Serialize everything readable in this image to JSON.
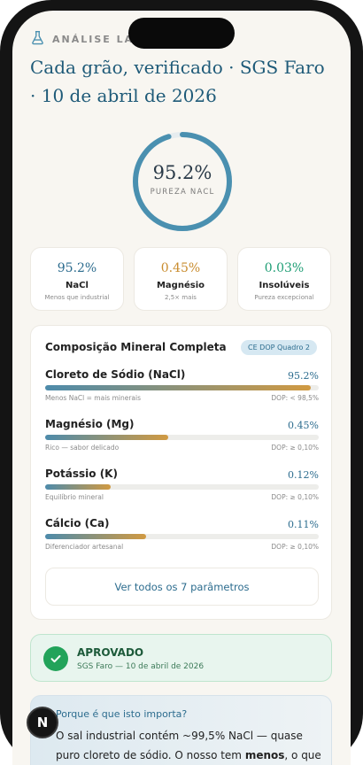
{
  "header": {
    "lab_label": "ANÁLISE LAB",
    "title": "Cada grão, verificado · SGS Faro · 10 de abril de 2026"
  },
  "purity": {
    "value_text": "95.2%",
    "label": "PUREZA NACL",
    "fraction": 0.952,
    "ring_color": "#4a90b0"
  },
  "stats": [
    {
      "value": "95.2%",
      "name": "NaCl",
      "sub": "Menos que industrial",
      "color": "#2c6c8e"
    },
    {
      "value": "0.45%",
      "name": "Magnésio",
      "sub": "2,5× mais",
      "color": "#c98c2e"
    },
    {
      "value": "0.03%",
      "name": "Insolúveis",
      "sub": "Pureza excepcional",
      "color": "#1f9e75"
    }
  ],
  "composition": {
    "title": "Composição Mineral Completa",
    "badge": "CE DOP Quadro 2",
    "minerals": [
      {
        "name": "Cloreto de Sódio (NaCl)",
        "value": "95.2%",
        "fill": 0.97,
        "note": "Menos NaCl = mais minerais",
        "dop": "DOP: < 98,5%"
      },
      {
        "name": "Magnésio (Mg)",
        "value": "0.45%",
        "fill": 0.45,
        "note": "Rico — sabor delicado",
        "dop": "DOP: ≥ 0,10%"
      },
      {
        "name": "Potássio (K)",
        "value": "0.12%",
        "fill": 0.24,
        "note": "Equilíbrio mineral",
        "dop": "DOP: ≥ 0,10%"
      },
      {
        "name": "Cálcio (Ca)",
        "value": "0.11%",
        "fill": 0.37,
        "note": "Diferenciador artesanal",
        "dop": "DOP: ≥ 0,10%"
      }
    ],
    "view_all": "Ver todos os 7 parâmetros"
  },
  "approval": {
    "title": "APROVADO",
    "subtitle": "SGS Faro — 10 de abril de 2026"
  },
  "why": {
    "title": "Porque é que isto importa?",
    "body_1": "O sal industrial contém ~99,5% NaCl — quase puro cloreto de sódio. O nosso tem ",
    "body_bold": "menos",
    "body_2": ", o que significa"
  },
  "floating_badge": "N"
}
